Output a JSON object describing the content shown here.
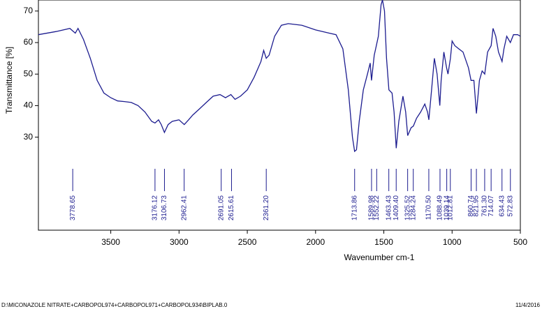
{
  "chart_data": {
    "type": "line",
    "xlabel": "Wavenumber cm-1",
    "ylabel": "Transmittance [%]",
    "xlim": [
      4030,
      500
    ],
    "xticks": [
      3500,
      3000,
      2500,
      2000,
      1500,
      1000,
      500
    ],
    "ylim": [
      0.5,
      73.5
    ],
    "yticks": [
      30,
      40,
      50,
      60,
      70
    ],
    "series": [
      {
        "color": "#1c1c8f",
        "x": [
          4030,
          3900,
          3800,
          3760,
          3740,
          3700,
          3650,
          3600,
          3550,
          3500,
          3450,
          3400,
          3350,
          3300,
          3250,
          3200,
          3176,
          3150,
          3130,
          3107,
          3080,
          3050,
          3000,
          2962,
          2930,
          2900,
          2850,
          2800,
          2750,
          2700,
          2660,
          2620,
          2590,
          2550,
          2500,
          2450,
          2400,
          2380,
          2361,
          2340,
          2300,
          2250,
          2200,
          2100,
          2000,
          1900,
          1850,
          1800,
          1760,
          1730,
          1714,
          1700,
          1680,
          1650,
          1620,
          1600,
          1590,
          1570,
          1560,
          1540,
          1520,
          1510,
          1495,
          1480,
          1463,
          1440,
          1425,
          1409,
          1390,
          1360,
          1340,
          1325,
          1300,
          1284,
          1260,
          1230,
          1200,
          1180,
          1170,
          1150,
          1130,
          1110,
          1090,
          1080,
          1060,
          1040,
          1030,
          1012,
          1000,
          980,
          950,
          920,
          880,
          861,
          840,
          822,
          800,
          780,
          761,
          740,
          714,
          700,
          680,
          660,
          634,
          620,
          600,
          573,
          550,
          520,
          500
        ],
        "values": [
          62.5,
          63.5,
          64.5,
          63,
          64.5,
          61,
          55,
          48,
          44,
          42.5,
          41.5,
          41.3,
          41,
          40,
          38,
          35,
          34.5,
          35.5,
          34,
          31.5,
          34,
          35,
          35.5,
          34,
          35.5,
          37,
          39,
          41,
          43,
          43.5,
          42.5,
          43.5,
          42,
          43,
          45,
          49,
          54,
          57.5,
          55,
          56,
          62,
          65.5,
          66,
          65.5,
          64,
          63,
          62.5,
          58,
          45,
          30,
          25.5,
          26,
          35,
          45,
          50,
          53.5,
          48,
          56,
          58,
          62,
          72,
          73.5,
          70,
          55,
          45,
          44,
          38,
          26.5,
          35,
          43,
          38,
          30.5,
          33,
          33.5,
          36,
          38,
          40.5,
          38,
          35.5,
          45,
          55,
          50,
          40,
          48,
          57,
          52,
          50,
          55,
          60.5,
          59,
          58,
          57,
          52,
          48,
          48,
          37.5,
          48,
          51,
          50,
          57,
          59,
          64.5,
          62,
          57,
          54,
          58,
          62,
          60,
          62.5,
          62.5,
          62
        ]
      }
    ],
    "peak_labels": [
      3778.65,
      3176.12,
      3106.73,
      2962.41,
      2691.05,
      2615.61,
      {
        "value": 2361.2,
        "label": "2361.20"
      },
      1713.86,
      1589.98,
      1552.22,
      1463.43,
      {
        "value": 1409.4,
        "label": "1409.40"
      },
      1325.52,
      1284.24,
      {
        "value": 1170.5,
        "label": "1170.50"
      },
      1088.49,
      1039.14,
      1012.81,
      860.74,
      821.95,
      {
        "value": 761.3,
        "label": "761.30"
      },
      714.07,
      634.43,
      572.83
    ],
    "footer_left": "D:\\MICONAZOLE NITRATE+CARBOPOL974+CARBOPOL971+CARBOPOL934\\BIPLAB.0",
    "footer_right": "11/4/2016"
  }
}
